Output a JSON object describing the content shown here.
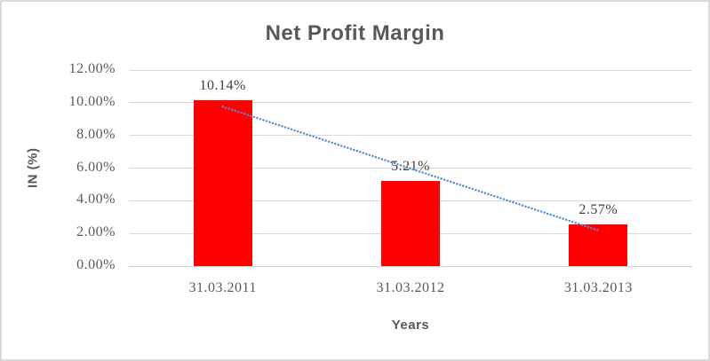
{
  "chart_data": {
    "type": "bar",
    "title": "Net Profit Margin",
    "xlabel": "Years",
    "ylabel": "IN (%)",
    "categories": [
      "31.03.2011",
      "31.03.2012",
      "31.03.2013"
    ],
    "values": [
      10.14,
      5.21,
      2.57
    ],
    "data_labels": [
      "10.14%",
      "5.21%",
      "2.57%"
    ],
    "ylim": [
      0,
      12
    ],
    "ytick_step": 2,
    "ytick_labels": [
      "0.00%",
      "2.00%",
      "4.00%",
      "6.00%",
      "8.00%",
      "10.00%",
      "12.00%"
    ],
    "grid": "on",
    "legend": "none",
    "colors": {
      "bar": "#ff0000",
      "trendline": "#4e8fd4",
      "gridline": "#d9d9d9",
      "axis_line": "#d0d0d0",
      "title_text": "#595959",
      "tick_text": "#595959",
      "data_label_text": "#404040"
    },
    "trendline": {
      "series": "linear-trendline",
      "style": "dotted"
    }
  }
}
